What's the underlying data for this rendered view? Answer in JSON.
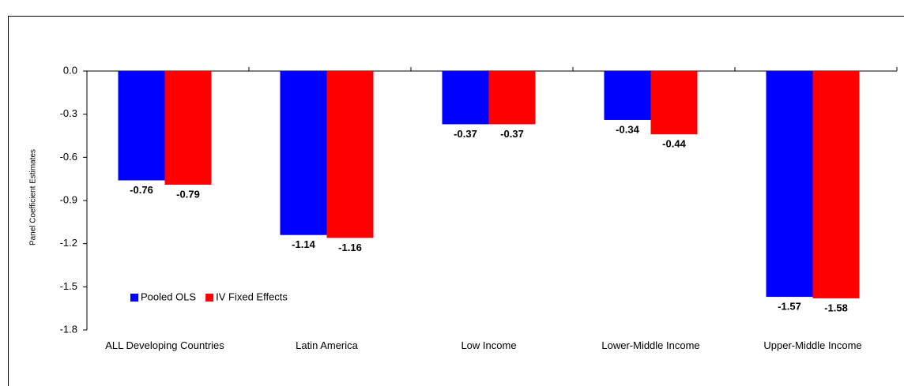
{
  "chart_data": {
    "type": "bar",
    "y_label": "Panel Coefficient Estimates",
    "categories": [
      "ALL Developing Countries",
      "Latin America",
      "Low Income",
      "Lower-Middle Income",
      "Upper-Middle Income"
    ],
    "series": [
      {
        "name": "Pooled OLS",
        "color": "#0000ff",
        "values": [
          -0.76,
          -1.14,
          -0.37,
          -0.34,
          -1.57
        ]
      },
      {
        "name": "IV Fixed Effects",
        "color": "#ff0000",
        "values": [
          -0.79,
          -1.16,
          -0.37,
          -0.44,
          -1.58
        ]
      }
    ],
    "ylim": [
      -1.8,
      0
    ],
    "yticks": [
      {
        "value": 0,
        "label": "0.0"
      },
      -0.3,
      -0.6,
      -0.9,
      -1.2,
      -1.5,
      -1.8
    ],
    "legend": "lower-left"
  }
}
